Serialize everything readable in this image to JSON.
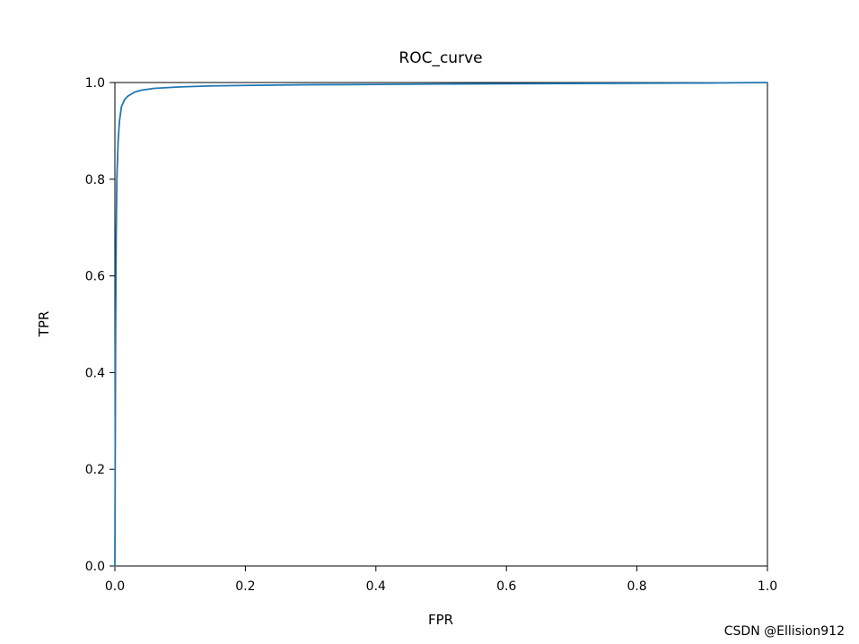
{
  "watermark": "CSDN @Ellision912",
  "colors": {
    "line": "#1f77b4",
    "watermark": "#9ba0ad",
    "spine": "#000000"
  },
  "chart_data": {
    "type": "line",
    "title": "ROC_curve",
    "xlabel": "FPR",
    "ylabel": "TPR",
    "xlim": [
      0.0,
      1.0
    ],
    "ylim": [
      0.0,
      1.0
    ],
    "grid": false,
    "legend_position": "none",
    "x_ticks": [
      0.0,
      0.2,
      0.4,
      0.6,
      0.8,
      1.0
    ],
    "y_ticks": [
      0.0,
      0.2,
      0.4,
      0.6,
      0.8,
      1.0
    ],
    "x_tick_labels": [
      "0.0",
      "0.2",
      "0.4",
      "0.6",
      "0.8",
      "1.0"
    ],
    "y_tick_labels": [
      "0.0",
      "0.2",
      "0.4",
      "0.6",
      "0.8",
      "1.0"
    ],
    "series": [
      {
        "name": "ROC",
        "color": "#1f77b4",
        "x": [
          0.0,
          0.001,
          0.002,
          0.003,
          0.005,
          0.007,
          0.01,
          0.015,
          0.02,
          0.03,
          0.04,
          0.06,
          0.1,
          0.15,
          0.2,
          0.3,
          0.4,
          0.5,
          0.6,
          0.7,
          0.8,
          0.9,
          1.0
        ],
        "y": [
          0.0,
          0.45,
          0.68,
          0.8,
          0.88,
          0.92,
          0.95,
          0.965,
          0.972,
          0.98,
          0.984,
          0.988,
          0.991,
          0.993,
          0.994,
          0.9955,
          0.996,
          0.997,
          0.9975,
          0.998,
          0.9985,
          0.999,
          1.0
        ]
      }
    ]
  }
}
